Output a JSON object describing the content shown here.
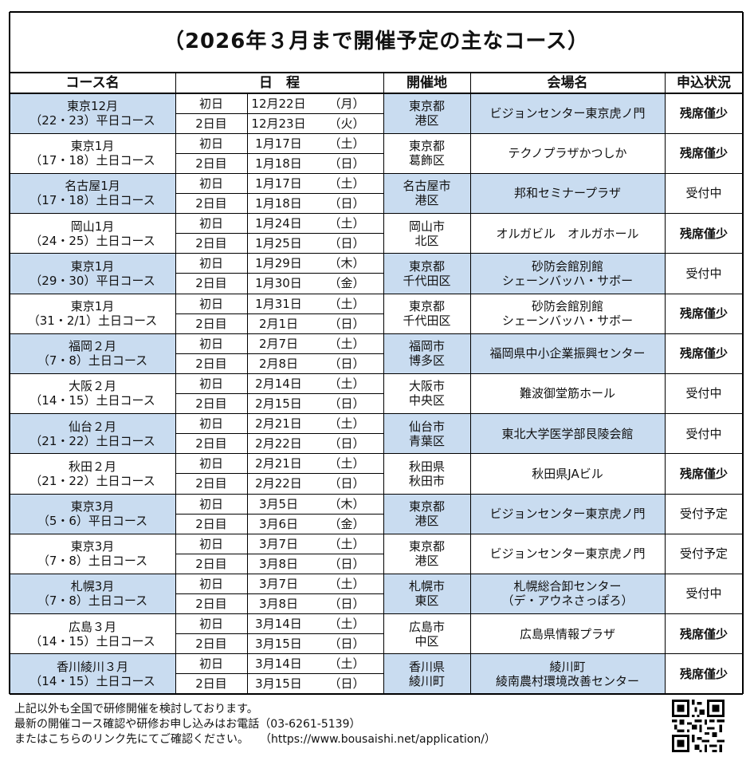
{
  "title": "（2026年３月まで開催予定の主なコース）",
  "headers": {
    "course": "コース名",
    "schedule": "日　程",
    "region": "開催地",
    "venue": "会場名",
    "status": "申込状況"
  },
  "courses": [
    {
      "name": "東京12月\n（22・23）平日コース",
      "days": [
        {
          "label": "初日",
          "date": "12月22日",
          "dow": "（月）"
        },
        {
          "label": "2日目",
          "date": "12月23日",
          "dow": "（火）"
        }
      ],
      "region": "東京都\n港区",
      "venue": "ビジョンセンター東京虎ノ門",
      "status": "残席僅少",
      "highlight": true
    },
    {
      "name": "東京1月\n（17・18）土日コース",
      "days": [
        {
          "label": "初日",
          "date": "1月17日",
          "dow": "（土）"
        },
        {
          "label": "2日目",
          "date": "1月18日",
          "dow": "（日）"
        }
      ],
      "region": "東京都\n葛飾区",
      "venue": "テクノプラザかつしか",
      "status": "残席僅少",
      "highlight": false
    },
    {
      "name": "名古屋1月\n（17・18）土日コース",
      "days": [
        {
          "label": "初日",
          "date": "1月17日",
          "dow": "（土）"
        },
        {
          "label": "2日目",
          "date": "1月18日",
          "dow": "（日）"
        }
      ],
      "region": "名古屋市\n港区",
      "venue": "邦和セミナープラザ",
      "status": "受付中",
      "highlight": true
    },
    {
      "name": "岡山1月\n（24・25）土日コース",
      "days": [
        {
          "label": "初日",
          "date": "1月24日",
          "dow": "（土）"
        },
        {
          "label": "2日目",
          "date": "1月25日",
          "dow": "（日）"
        }
      ],
      "region": "岡山市\n北区",
      "venue": "オルガビル　オルガホール",
      "status": "残席僅少",
      "highlight": false
    },
    {
      "name": "東京1月\n（29・30）平日コース",
      "days": [
        {
          "label": "初日",
          "date": "1月29日",
          "dow": "（木）"
        },
        {
          "label": "2日目",
          "date": "1月30日",
          "dow": "（金）"
        }
      ],
      "region": "東京都\n千代田区",
      "venue": "砂防会館別館\nシェーンバッハ・サボー",
      "status": "受付中",
      "highlight": true
    },
    {
      "name": "東京1月\n（31・2/1）土日コース",
      "days": [
        {
          "label": "初日",
          "date": "1月31日",
          "dow": "（土）"
        },
        {
          "label": "2日目",
          "date": "2月1日",
          "dow": "（日）"
        }
      ],
      "region": "東京都\n千代田区",
      "venue": "砂防会館別館\nシェーンバッハ・サボー",
      "status": "残席僅少",
      "highlight": false
    },
    {
      "name": "福岡２月\n（7・8）土日コース",
      "days": [
        {
          "label": "初日",
          "date": "2月7日",
          "dow": "（土）"
        },
        {
          "label": "2日目",
          "date": "2月8日",
          "dow": "（日）"
        }
      ],
      "region": "福岡市\n博多区",
      "venue": "福岡県中小企業振興センター",
      "status": "残席僅少",
      "highlight": true
    },
    {
      "name": "大阪２月\n（14・15）土日コース",
      "days": [
        {
          "label": "初日",
          "date": "2月14日",
          "dow": "（土）"
        },
        {
          "label": "2日目",
          "date": "2月15日",
          "dow": "（日）"
        }
      ],
      "region": "大阪市\n中央区",
      "venue": "難波御堂筋ホール",
      "status": "受付中",
      "highlight": false
    },
    {
      "name": "仙台２月\n（21・22）土日コース",
      "days": [
        {
          "label": "初日",
          "date": "2月21日",
          "dow": "（土）"
        },
        {
          "label": "2日目",
          "date": "2月22日",
          "dow": "（日）"
        }
      ],
      "region": "仙台市\n青葉区",
      "venue": "東北大学医学部艮陵会館",
      "status": "受付中",
      "highlight": true
    },
    {
      "name": "秋田２月\n（21・22）土日コース",
      "days": [
        {
          "label": "初日",
          "date": "2月21日",
          "dow": "（土）"
        },
        {
          "label": "2日目",
          "date": "2月22日",
          "dow": "（日）"
        }
      ],
      "region": "秋田県\n秋田市",
      "venue": "秋田県JAビル",
      "status": "残席僅少",
      "highlight": false
    },
    {
      "name": "東京3月\n（5・6）平日コース",
      "days": [
        {
          "label": "初日",
          "date": "3月5日",
          "dow": "（木）"
        },
        {
          "label": "2日目",
          "date": "3月6日",
          "dow": "（金）"
        }
      ],
      "region": "東京都\n港区",
      "venue": "ビジョンセンター東京虎ノ門",
      "status": "受付予定",
      "highlight": true
    },
    {
      "name": "東京3月\n（7・8）土日コース",
      "days": [
        {
          "label": "初日",
          "date": "3月7日",
          "dow": "（土）"
        },
        {
          "label": "2日目",
          "date": "3月8日",
          "dow": "（日）"
        }
      ],
      "region": "東京都\n港区",
      "venue": "ビジョンセンター東京虎ノ門",
      "status": "受付予定",
      "highlight": false
    },
    {
      "name": "札幌3月\n（7・8）土日コース",
      "days": [
        {
          "label": "初日",
          "date": "3月7日",
          "dow": "（土）"
        },
        {
          "label": "2日目",
          "date": "3月8日",
          "dow": "（日）"
        }
      ],
      "region": "札幌市\n東区",
      "venue": "札幌総合卸センター\n（デ・アウネさっぽろ）",
      "status": "受付中",
      "highlight": true
    },
    {
      "name": "広島３月\n（14・15）土日コース",
      "days": [
        {
          "label": "初日",
          "date": "3月14日",
          "dow": "（土）"
        },
        {
          "label": "2日目",
          "date": "3月15日",
          "dow": "（日）"
        }
      ],
      "region": "広島市\n中区",
      "venue": "広島県情報プラザ",
      "status": "残席僅少",
      "highlight": false
    },
    {
      "name": "香川綾川３月\n（14・15）土日コース",
      "days": [
        {
          "label": "初日",
          "date": "3月14日",
          "dow": "（土）"
        },
        {
          "label": "2日目",
          "date": "3月15日",
          "dow": "（日）"
        }
      ],
      "region": "香川県\n綾川町",
      "venue": "綾川町\n綾南農村環境改善センター",
      "status": "残席僅少",
      "highlight": true
    }
  ],
  "footer": {
    "line1": "上記以外も全国で研修開催を検討しております。",
    "line2": "最新の開催コース確認や研修お申し込みはお電話（03-6261-5139）",
    "line3": "またはこちらのリンク先にてご確認ください。　　（https://www.bousaishi.net/application/）"
  },
  "qr_code": "qr-code-icon",
  "colors": {
    "row_highlight": "#c9dcf0",
    "border": "#000000"
  }
}
